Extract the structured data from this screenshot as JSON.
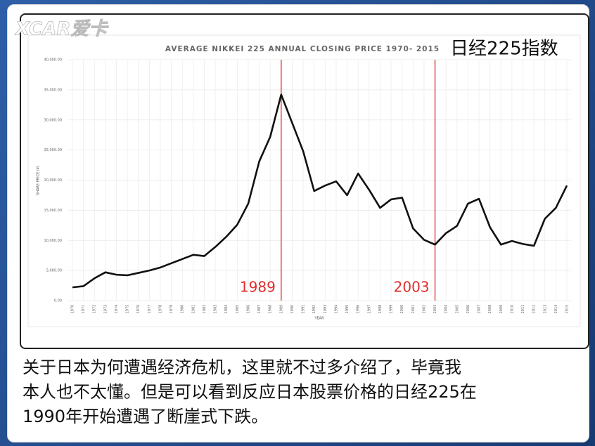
{
  "watermark": "XCAR爱卡",
  "overlay_title": "日经225指数",
  "caption": [
    "关于日本为何遭遇经济危机，这里就不过多介绍了，毕竟我",
    "本人也不太懂。但是可以看到反应日本股票价格的日经225在",
    "1990年开始遭遇了断崖式下跌。"
  ],
  "chart_data": {
    "type": "line",
    "title": "AVERAGE NIKKEI 225 ANNUAL CLOSING PRICE 1970- 2015",
    "x_label": "YEAR",
    "y_label": "SHARE PRICE (¥)",
    "categories": [
      "1970",
      "1971",
      "1972",
      "1973",
      "1974",
      "1975",
      "1976",
      "1977",
      "1978",
      "1979",
      "1980",
      "1981",
      "1982",
      "1983",
      "1984",
      "1985",
      "1986",
      "1987",
      "1988",
      "1989",
      "1990",
      "1991",
      "1992",
      "1993",
      "1994",
      "1995",
      "1996",
      "1997",
      "1998",
      "1999",
      "2000",
      "2001",
      "2002",
      "2003",
      "2004",
      "2005",
      "2006",
      "2007",
      "2008",
      "2009",
      "2010",
      "2011",
      "2012",
      "2013",
      "2014",
      "2015"
    ],
    "series": [
      {
        "name": "Nikkei 225",
        "color": "#111111",
        "values": [
          2200,
          2400,
          3700,
          4700,
          4300,
          4200,
          4600,
          5000,
          5500,
          6200,
          6900,
          7600,
          7400,
          8900,
          10600,
          12600,
          16100,
          23100,
          27200,
          34200,
          29500,
          24800,
          18200,
          19100,
          19800,
          17500,
          21100,
          18400,
          15400,
          16800,
          17100,
          12000,
          10100,
          9300,
          11200,
          12400,
          16100,
          16900,
          12200,
          9300,
          9900,
          9400,
          9100,
          13600,
          15400,
          19100
        ]
      }
    ],
    "ylim": [
      0,
      40000
    ],
    "yticks": [
      {
        "value": 0,
        "label": "0.00"
      },
      {
        "value": 5000,
        "label": "5,000.00"
      },
      {
        "value": 10000,
        "label": "10,000.00"
      },
      {
        "value": 15000,
        "label": "15,000.00"
      },
      {
        "value": 20000,
        "label": "20,000.00"
      },
      {
        "value": 25000,
        "label": "25,000.00"
      },
      {
        "value": 30000,
        "label": "30,000.00"
      },
      {
        "value": 35000,
        "label": "35,000.00"
      },
      {
        "value": 40000,
        "label": "40,000.00"
      }
    ],
    "grid": true,
    "annotations": [
      {
        "label": "1989",
        "color": "#e02b2b"
      },
      {
        "label": "2003",
        "color": "#e02b2b"
      }
    ]
  }
}
